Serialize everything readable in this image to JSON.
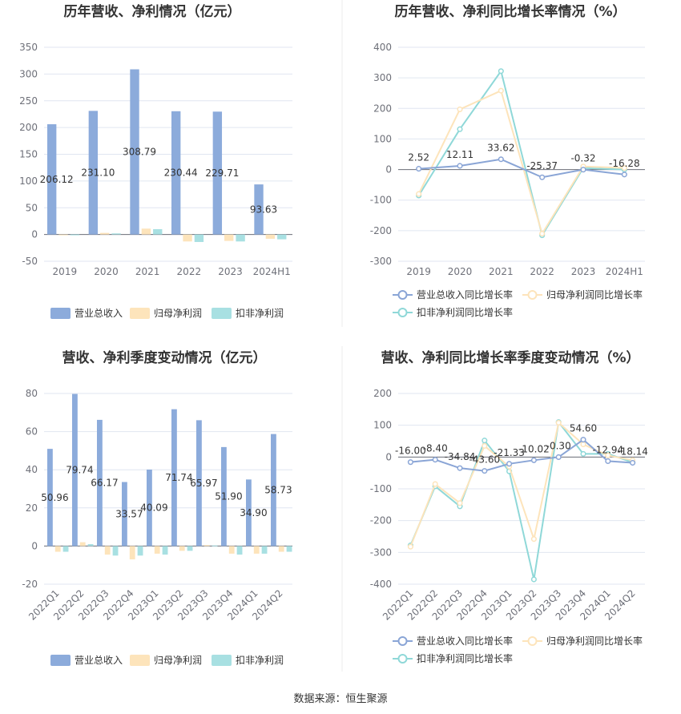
{
  "colors": {
    "revenue": "#8cabdb",
    "parent_profit": "#fde4bb",
    "deducted_profit": "#a8e0e2",
    "line_revenue": "#8aa5d6",
    "line_parent": "#fde4bb",
    "line_deducted": "#8fd8d8"
  },
  "source": "数据来源：恒生聚源",
  "chart_data": [
    {
      "id": "annual_values",
      "type": "bar",
      "title": "历年营收、净利情况（亿元）",
      "categories": [
        "2019",
        "2020",
        "2021",
        "2022",
        "2023",
        "2024H1"
      ],
      "ylim": [
        -50,
        350
      ],
      "yticks": [
        -50,
        0,
        50,
        100,
        150,
        200,
        250,
        300,
        350
      ],
      "series": [
        {
          "name": "营业总收入",
          "values": [
            206.12,
            231.1,
            308.79,
            230.44,
            229.71,
            93.63
          ],
          "labels": [
            "206.12",
            "231.10",
            "308.79",
            "230.44",
            "229.71",
            "93.63"
          ]
        },
        {
          "name": "归母净利润",
          "values": [
            -1,
            3,
            11,
            -13,
            -12,
            -8
          ]
        },
        {
          "name": "扣非净利润",
          "values": [
            -1,
            2,
            10,
            -14,
            -13,
            -9
          ]
        }
      ],
      "legend": "bottom"
    },
    {
      "id": "annual_growth",
      "type": "line",
      "title": "历年营收、净利同比增长率情况（%）",
      "categories": [
        "2019",
        "2020",
        "2021",
        "2022",
        "2023",
        "2024H1"
      ],
      "ylim": [
        -300,
        400
      ],
      "yticks": [
        -300,
        -200,
        -100,
        0,
        100,
        200,
        300,
        400
      ],
      "series": [
        {
          "name": "营业总收入同比增长率",
          "values": [
            2.52,
            12.11,
            33.62,
            -25.37,
            -0.32,
            -16.28
          ],
          "labels": [
            "2.52",
            "12.11",
            "33.62",
            "-25.37",
            "-0.32",
            "-16.28"
          ]
        },
        {
          "name": "归母净利润同比增长率",
          "values": [
            -80,
            197,
            258,
            -210,
            10,
            5
          ]
        },
        {
          "name": "扣非净利润同比增长率",
          "values": [
            -85,
            132,
            322,
            -215,
            5,
            0
          ]
        }
      ],
      "legend": "bottom"
    },
    {
      "id": "quarterly_values",
      "type": "bar",
      "title": "营收、净利季度变动情况（亿元）",
      "categories": [
        "2022Q1",
        "2022Q2",
        "2022Q3",
        "2022Q4",
        "2023Q1",
        "2023Q2",
        "2023Q3",
        "2023Q4",
        "2024Q1",
        "2024Q2"
      ],
      "ylim": [
        -20,
        80
      ],
      "yticks": [
        -20,
        0,
        20,
        40,
        60,
        80
      ],
      "series": [
        {
          "name": "营业总收入",
          "values": [
            50.96,
            79.74,
            66.17,
            33.57,
            40.09,
            71.74,
            65.97,
            51.9,
            34.9,
            58.73
          ],
          "labels": [
            "50.96",
            "79.74",
            "66.17",
            "33.57",
            "40.09",
            "71.74",
            "65.97",
            "51.90",
            "34.90",
            "58.73"
          ]
        },
        {
          "name": "归母净利润",
          "values": [
            -3,
            2,
            -4.5,
            -7,
            -4,
            -2.5,
            0.5,
            -4,
            -4,
            -3
          ]
        },
        {
          "name": "扣非净利润",
          "values": [
            -3,
            1,
            -5,
            -5,
            -4.5,
            -2.5,
            0.3,
            -4.5,
            -4,
            -3
          ]
        }
      ],
      "legend": "bottom"
    },
    {
      "id": "quarterly_growth",
      "type": "line",
      "title": "营收、净利同比增长率季度变动情况（%）",
      "categories": [
        "2022Q1",
        "2022Q2",
        "2022Q3",
        "2022Q4",
        "2023Q1",
        "2023Q2",
        "2023Q3",
        "2023Q4",
        "2024Q1",
        "2024Q2"
      ],
      "ylim": [
        -400,
        200
      ],
      "yticks": [
        -400,
        -300,
        -200,
        -100,
        0,
        100,
        200
      ],
      "series": [
        {
          "name": "营业总收入同比增长率",
          "values": [
            -16.0,
            -8.4,
            -34.84,
            -43.6,
            -21.33,
            -10.02,
            -0.3,
            54.6,
            -12.94,
            -18.14
          ],
          "labels": [
            "-16.00",
            "-8.40",
            "-34.84",
            "-43.60",
            "-21.33",
            "-10.02",
            "-0.30",
            "54.60",
            "-12.94",
            "-18.14"
          ]
        },
        {
          "name": "归母净利润同比增长率",
          "values": [
            -282,
            -85,
            -145,
            35,
            -30,
            -258,
            108,
            40,
            5,
            -10
          ]
        },
        {
          "name": "扣非净利润同比增长率",
          "values": [
            -278,
            -92,
            -155,
            52,
            -45,
            -385,
            110,
            10,
            10,
            -17
          ]
        }
      ],
      "legend": "bottom"
    }
  ]
}
